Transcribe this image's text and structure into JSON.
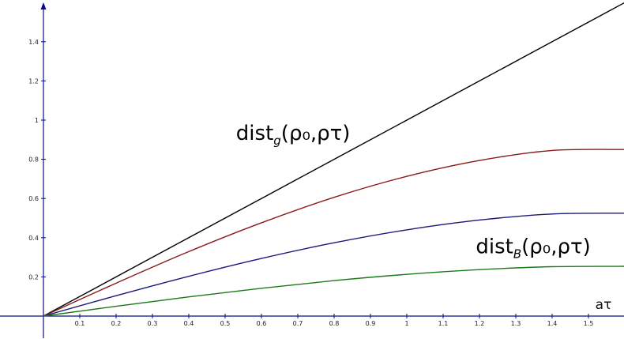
{
  "chart_data": {
    "type": "line",
    "title": "",
    "xlabel": "aτ",
    "ylabel": "",
    "xlim": [
      0,
      1.6
    ],
    "ylim": [
      0,
      1.6
    ],
    "x_ticks": [
      "0.1",
      "0.2",
      "0.3",
      "0.4",
      "0.5",
      "0.6",
      "0.7",
      "0.8",
      "0.9",
      "1",
      "1.1",
      "1.2",
      "1.3",
      "1.4",
      "1.5"
    ],
    "y_ticks": [
      "0.2",
      "0.4",
      "0.6",
      "0.8",
      "1",
      "1.2",
      "1.4"
    ],
    "grid": false,
    "legend": "none",
    "series": [
      {
        "color": "#000000",
        "x": [
          0,
          0.4,
          0.8,
          1.2,
          1.6
        ],
        "y": [
          0,
          0.4,
          0.8,
          1.2,
          1.6
        ]
      },
      {
        "color": "#8b1a1a",
        "x": [
          0,
          0.2,
          0.4,
          0.6,
          0.8,
          1.0,
          1.2,
          1.4,
          1.6
        ],
        "y": [
          0,
          0.168,
          0.329,
          0.476,
          0.606,
          0.713,
          0.794,
          0.845,
          0.85
        ]
      },
      {
        "color": "#1a1a7a",
        "x": [
          0,
          0.2,
          0.4,
          0.6,
          0.8,
          1.0,
          1.2,
          1.4,
          1.6
        ],
        "y": [
          0,
          0.104,
          0.203,
          0.294,
          0.374,
          0.44,
          0.49,
          0.521,
          0.525
        ]
      },
      {
        "color": "#1a7a1a",
        "x": [
          0,
          0.2,
          0.4,
          0.6,
          0.8,
          1.0,
          1.2,
          1.4,
          1.6
        ],
        "y": [
          0,
          0.05,
          0.098,
          0.142,
          0.181,
          0.213,
          0.237,
          0.252,
          0.254
        ]
      }
    ],
    "annotations": [
      {
        "text": "dist",
        "subscript": "g",
        "args": "(ρ₀,ρτ)",
        "x": 0.53,
        "y": 0.9
      },
      {
        "text": "dist",
        "subscript": "B",
        "args": "(ρ₀,ρτ)",
        "x": 1.19,
        "y": 0.32
      }
    ],
    "axis_color": "#0a0a8c"
  }
}
